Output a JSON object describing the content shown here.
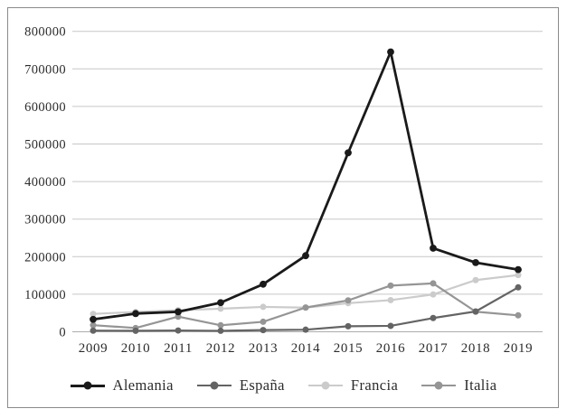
{
  "figure": {
    "background": "#ffffff",
    "border_color": "#8a8a8a"
  },
  "chart_data": {
    "type": "line",
    "title": "",
    "xlabel": "",
    "ylabel": "",
    "x_labels": [
      "2009",
      "2010",
      "2011",
      "2012",
      "2013",
      "2014",
      "2015",
      "2016",
      "2017",
      "2018",
      "2019"
    ],
    "ylim": [
      0,
      800000
    ],
    "ytick_step": 100000,
    "ytick_labels": [
      "0",
      "100000",
      "200000",
      "300000",
      "400000",
      "500000",
      "600000",
      "700000",
      "800000"
    ],
    "grid": "horizontal",
    "gridline_color": "#c7c7c7",
    "axis_line_color": "#adadad",
    "axis_text_color": "#2b2b2b",
    "legend_position": "bottom-center",
    "marker": "circle",
    "series": [
      {
        "name": "Alemania",
        "color": "#1a1a1a",
        "line_width": 2.8,
        "marker_size": 3.9,
        "values": [
          33035,
          48475,
          53235,
          77485,
          126705,
          202645,
          476510,
          745155,
          222560,
          184180,
          165615
        ]
      },
      {
        "name": "España",
        "color": "#646464",
        "line_width": 2.2,
        "marker_size": 3.5,
        "values": [
          3005,
          2740,
          3420,
          2565,
          4485,
          5615,
          14780,
          15755,
          36605,
          54050,
          118260
        ]
      },
      {
        "name": "Francia",
        "color": "#cbcbcb",
        "line_width": 2.2,
        "marker_size": 3.5,
        "values": [
          47625,
          52725,
          57335,
          61455,
          66265,
          64310,
          76165,
          84270,
          99330,
          137665,
          151070
        ]
      },
      {
        "name": "Italia",
        "color": "#959595",
        "line_width": 2.2,
        "marker_size": 3.5,
        "values": [
          17640,
          10050,
          40315,
          17335,
          26620,
          64625,
          83540,
          122960,
          128850,
          53500,
          43770
        ]
      }
    ]
  }
}
